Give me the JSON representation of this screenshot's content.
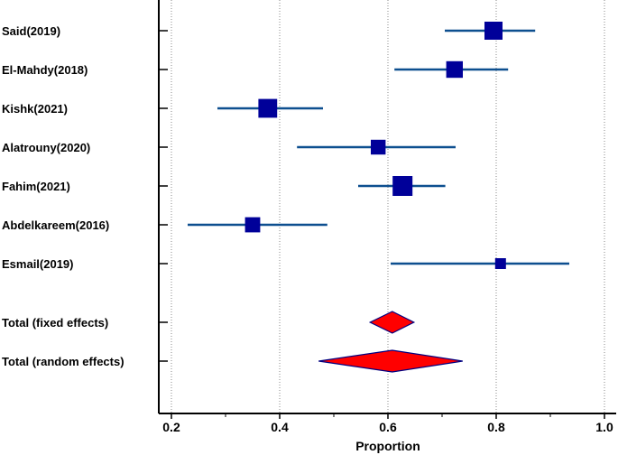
{
  "chart_data": {
    "type": "forest",
    "xlabel": "Proportion",
    "xlim": [
      0.2,
      1.0
    ],
    "ticks": [
      {
        "value": 0.2,
        "label": "0.2"
      },
      {
        "value": 0.4,
        "label": "0.4"
      },
      {
        "value": 0.6,
        "label": "0.6"
      },
      {
        "value": 0.8,
        "label": "0.8"
      },
      {
        "value": 1.0,
        "label": "1.0"
      }
    ],
    "grid": "vertical dotted",
    "studies": [
      {
        "label": "Said(2019)",
        "estimate": 0.795,
        "ci_low": 0.705,
        "ci_high": 0.872,
        "weight": 3
      },
      {
        "label": "El-Mahdy(2018)",
        "estimate": 0.723,
        "ci_low": 0.612,
        "ci_high": 0.822,
        "weight": 2.6
      },
      {
        "label": "Kishk(2021)",
        "estimate": 0.378,
        "ci_low": 0.285,
        "ci_high": 0.48,
        "weight": 3.2
      },
      {
        "label": "Alatrouny(2020)",
        "estimate": 0.582,
        "ci_low": 0.432,
        "ci_high": 0.725,
        "weight": 2.1
      },
      {
        "label": "Fahim(2021)",
        "estimate": 0.627,
        "ci_low": 0.545,
        "ci_high": 0.706,
        "weight": 3.5
      },
      {
        "label": "Abdelkareem(2016)",
        "estimate": 0.35,
        "ci_low": 0.23,
        "ci_high": 0.488,
        "weight": 2.2
      },
      {
        "label": "Esmail(2019)",
        "estimate": 0.808,
        "ci_low": 0.605,
        "ci_high": 0.935,
        "weight": 1
      }
    ],
    "totals": [
      {
        "label": "Total (fixed effects)",
        "estimate": 0.608,
        "ci_low": 0.567,
        "ci_high": 0.648
      },
      {
        "label": "Total (random effects)",
        "estimate": 0.608,
        "ci_low": 0.472,
        "ci_high": 0.738
      }
    ],
    "colors": {
      "study_marker": "#000099",
      "ci_line": "#0d4f8f",
      "diamond_fill": "#ff0000",
      "diamond_stroke": "#000080",
      "grid": "#888888",
      "axis": "#000000"
    }
  }
}
